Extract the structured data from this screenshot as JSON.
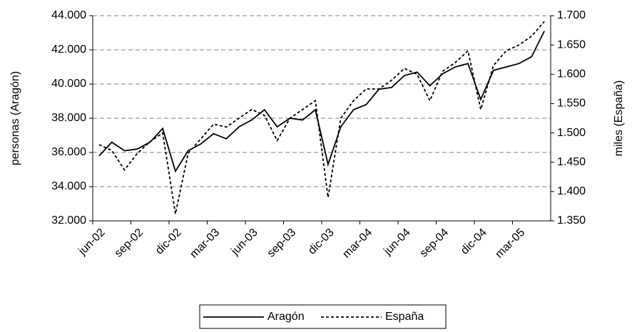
{
  "chart_data": {
    "type": "line",
    "categories": [
      "jun-02",
      null,
      null,
      "sep-02",
      null,
      null,
      "dic-02",
      null,
      null,
      "mar-03",
      null,
      null,
      "jun-03",
      null,
      null,
      "sep-03",
      null,
      null,
      "dic-03",
      null,
      null,
      "mar-04",
      null,
      null,
      "jun-04",
      null,
      null,
      "sep-04",
      null,
      null,
      "dic-04",
      null,
      null,
      "mar-05",
      null,
      null
    ],
    "series": [
      {
        "name": "Aragón",
        "color": "#000000",
        "dash": false,
        "axis": "y",
        "values": [
          35800,
          36600,
          36100,
          36200,
          36600,
          37400,
          34900,
          36100,
          36500,
          37100,
          36800,
          37500,
          37900,
          38500,
          37500,
          38000,
          37900,
          38500,
          35300,
          37500,
          38500,
          38800,
          39700,
          39800,
          40500,
          40700,
          39900,
          40600,
          41000,
          41200,
          39100,
          40800,
          41000,
          41200,
          41600,
          43100
        ]
      },
      {
        "name": "España",
        "color": "#000000",
        "dash": true,
        "axis": "y2",
        "values": [
          1480,
          1470,
          1437,
          1465,
          1485,
          1500,
          1362,
          1465,
          1490,
          1515,
          1510,
          1525,
          1540,
          1530,
          1487,
          1525,
          1540,
          1555,
          1390,
          1525,
          1555,
          1575,
          1575,
          1590,
          1610,
          1600,
          1555,
          1605,
          1620,
          1640,
          1540,
          1615,
          1640,
          1650,
          1665,
          1690
        ]
      }
    ],
    "y_label": "personas (Aragón)",
    "y2_label": "miles (España)",
    "ylim": [
      32000,
      44000
    ],
    "yticks": [
      {
        "value": 32000,
        "label": "32.000"
      },
      {
        "value": 34000,
        "label": "34.000"
      },
      {
        "value": 36000,
        "label": "36.000"
      },
      {
        "value": 38000,
        "label": "38.000"
      },
      {
        "value": 40000,
        "label": "40.000"
      },
      {
        "value": 42000,
        "label": "42.000"
      },
      {
        "value": 44000,
        "label": "44.000"
      }
    ],
    "y2lim": [
      1350,
      1700
    ],
    "y2ticks": [
      {
        "value": 1350,
        "label": "1.350"
      },
      {
        "value": 1400,
        "label": "1.400"
      },
      {
        "value": 1450,
        "label": "1.450"
      },
      {
        "value": 1500,
        "label": "1.500"
      },
      {
        "value": 1550,
        "label": "1.550"
      },
      {
        "value": 1600,
        "label": "1.600"
      },
      {
        "value": 1650,
        "label": "1.650"
      },
      {
        "value": 1700,
        "label": "1.700"
      }
    ],
    "grid": true,
    "legend": "bottom"
  }
}
